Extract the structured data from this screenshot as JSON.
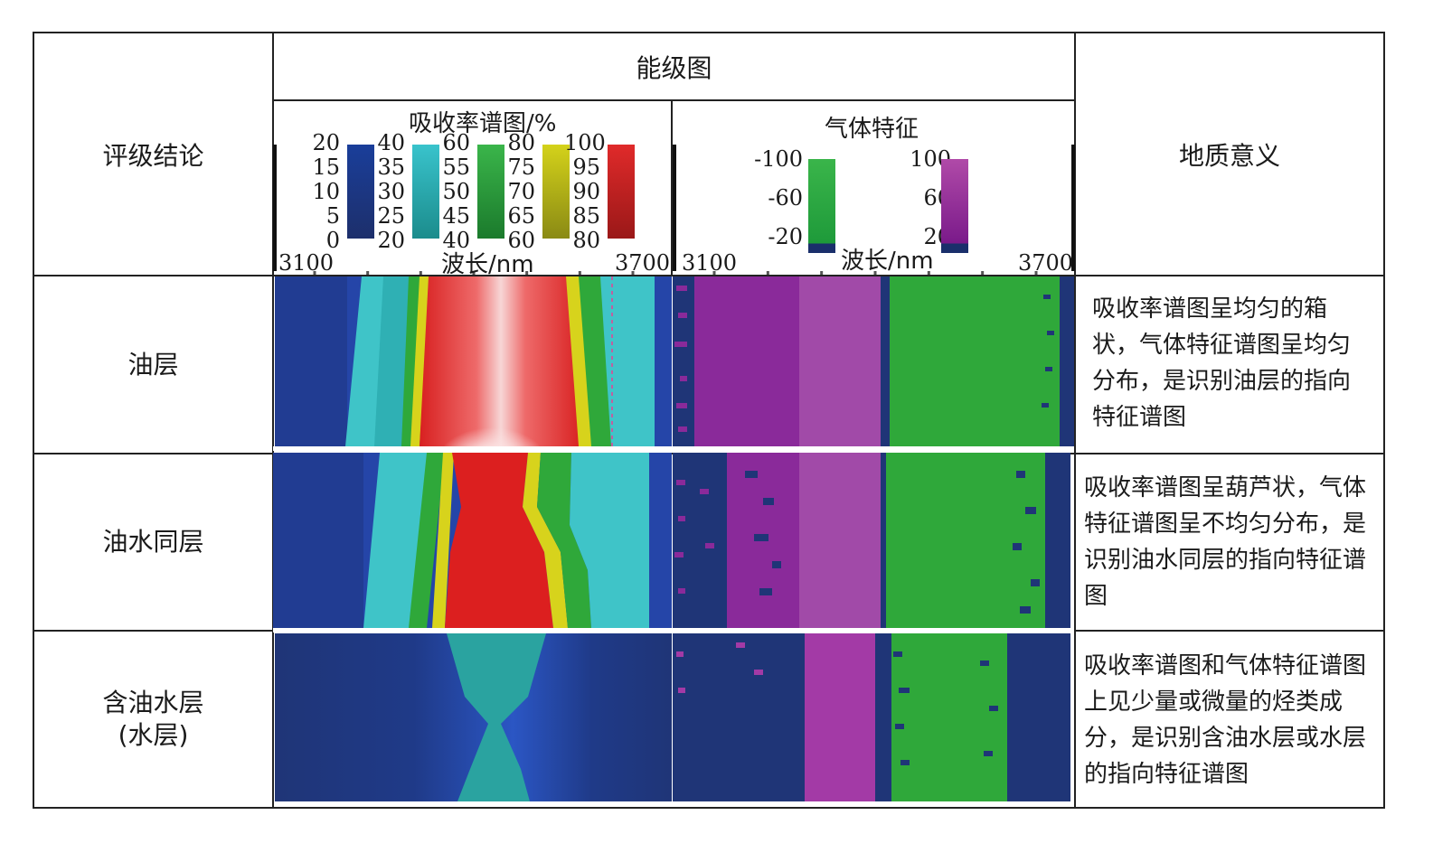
{
  "table": {
    "header": {
      "rating_conclusion": "评级结论",
      "energy_level_map": "能级图",
      "geological_meaning": "地质意义"
    },
    "absorption_panel": {
      "title": "吸收率谱图/%",
      "x_start": "3100",
      "x_end": "3700",
      "x_label": "波长/nm",
      "legend_groups": [
        {
          "ticks": [
            "20",
            "15",
            "10",
            "5",
            "0"
          ],
          "color_top": "#1a3e9a",
          "color_bottom": "#1d2f6b"
        },
        {
          "ticks": [
            "40",
            "35",
            "30",
            "25",
            "20"
          ],
          "color_top": "#39c3cc",
          "color_bottom": "#1b8c8c"
        },
        {
          "ticks": [
            "60",
            "55",
            "50",
            "45",
            "40"
          ],
          "color_top": "#3ab54a",
          "color_bottom": "#1b7a2c"
        },
        {
          "ticks": [
            "80",
            "75",
            "70",
            "65",
            "60"
          ],
          "color_top": "#d4d21a",
          "color_bottom": "#8a8a14"
        },
        {
          "ticks": [
            "100",
            "95",
            "90",
            "85",
            "80"
          ],
          "color_top": "#e02a2a",
          "color_bottom": "#9a1818"
        }
      ]
    },
    "gas_panel": {
      "title": "气体特征",
      "x_start": "3100",
      "x_end": "3700",
      "x_label": "波长/nm",
      "legend_groups": [
        {
          "ticks": [
            "-100",
            "-60",
            "-20"
          ],
          "color_top": "#3ab54a",
          "color_bottom": "#1e9a3a",
          "cap": "#1a2f6b"
        },
        {
          "ticks": [
            "100",
            "60",
            "20"
          ],
          "color_top": "#b04aa8",
          "color_bottom": "#7a1a8a",
          "cap": "#1a2f6b"
        }
      ]
    },
    "rows": [
      {
        "label_lines": [
          "油层"
        ],
        "description": "吸收率谱图呈均匀的箱状，气体特征谱图呈均匀分布，是识别油层的指向特征谱图"
      },
      {
        "label_lines": [
          "油水同层"
        ],
        "description": "吸收率谱图呈葫芦状，气体特征谱图呈不均匀分布，是识别油水同层的指向特征谱图"
      },
      {
        "label_lines": [
          "含油水层",
          "(水层)"
        ],
        "description": "吸收率谱图和气体特征谱图上见少量或微量的烃类成分，是识别含油水层或水层的指向特征谱图"
      }
    ]
  },
  "colors": {
    "navy": "#1f3577",
    "blue": "#2545a8",
    "cyan": "#3fc4c8",
    "teal": "#2aa3a0",
    "green": "#2fa83a",
    "yellow": "#d7d31c",
    "red": "#dc1f1f",
    "purple": "#8a2a9a",
    "violet": "#a040a0"
  }
}
